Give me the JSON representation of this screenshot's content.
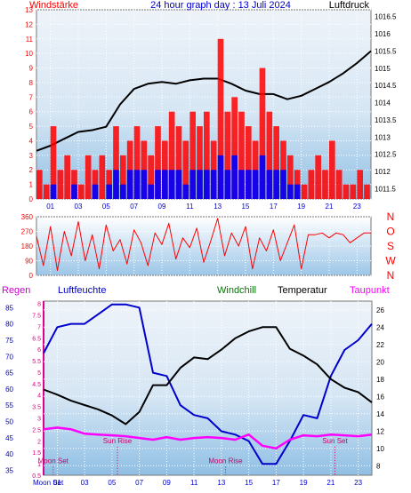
{
  "chart_data": [
    {
      "type": "line",
      "title": "24 hour graph day : 13 Juli 2024",
      "left_axis_label": "Windstärke",
      "right_axis_label": "Luftdruck",
      "left_ticks": [
        "0",
        "1",
        "2",
        "3",
        "4",
        "5",
        "6",
        "7",
        "8",
        "9",
        "10",
        "11",
        "12",
        "13"
      ],
      "right_ticks": [
        "1011.5",
        "1012",
        "1012.5",
        "1013",
        "1013.5",
        "1014",
        "1014.5",
        "1015",
        "1015.5",
        "1016",
        "1016.5"
      ],
      "x_ticks": [
        "01",
        "03",
        "05",
        "07",
        "09",
        "11",
        "13",
        "15",
        "17",
        "19",
        "21",
        "23"
      ],
      "xlim": [
        0,
        24
      ],
      "left_ylim": [
        0,
        13
      ],
      "right_ylim": [
        1011.2,
        1016.7
      ],
      "colors": {
        "pressure": "#000000",
        "gust": "#ff0000",
        "wind": "#0000ff",
        "bg_top": "#eef3f9",
        "bg_bottom": "#8fbfe4",
        "grid": "#ffffff"
      },
      "series": [
        {
          "key": "pressure",
          "axis": "right",
          "x": [
            0,
            1,
            2,
            3,
            4,
            5,
            6,
            7,
            8,
            9,
            10,
            11,
            12,
            13,
            14,
            15,
            16,
            17,
            18,
            19,
            20,
            21,
            22,
            23,
            24
          ],
          "values": [
            1012.6,
            1012.75,
            1012.95,
            1013.15,
            1013.2,
            1013.3,
            1013.95,
            1014.4,
            1014.55,
            1014.6,
            1014.55,
            1014.65,
            1014.7,
            1014.7,
            1014.55,
            1014.35,
            1014.25,
            1014.25,
            1014.1,
            1014.2,
            1014.4,
            1014.6,
            1014.85,
            1015.15,
            1015.5
          ]
        },
        {
          "key": "gust",
          "axis": "left",
          "x": [
            0,
            0.5,
            1,
            1.5,
            2,
            2.5,
            3,
            3.5,
            4,
            4.5,
            5,
            5.5,
            6,
            6.5,
            7,
            7.5,
            8,
            8.5,
            9,
            9.5,
            10,
            10.5,
            11,
            11.5,
            12,
            12.5,
            13,
            13.5,
            14,
            14.5,
            15,
            15.5,
            16,
            16.5,
            17,
            17.5,
            18,
            18.5,
            19,
            19.5,
            20,
            20.5,
            21,
            21.5,
            22,
            22.5,
            23,
            23.5
          ],
          "values": [
            2,
            1,
            5,
            2,
            3,
            2,
            1,
            3,
            2,
            3,
            2,
            5,
            3,
            4,
            5,
            4,
            3,
            5,
            4,
            6,
            5,
            4,
            6,
            5,
            6,
            4,
            11,
            6,
            7,
            6,
            5,
            4,
            9,
            6,
            5,
            4,
            3,
            2,
            1,
            2,
            3,
            2,
            4,
            2,
            1,
            1,
            2,
            1
          ]
        },
        {
          "key": "wind",
          "axis": "left",
          "x": [
            0,
            0.5,
            1,
            1.5,
            2,
            2.5,
            3,
            3.5,
            4,
            4.5,
            5,
            5.5,
            6,
            6.5,
            7,
            7.5,
            8,
            8.5,
            9,
            9.5,
            10,
            10.5,
            11,
            11.5,
            12,
            12.5,
            13,
            13.5,
            14,
            14.5,
            15,
            15.5,
            16,
            16.5,
            17,
            17.5,
            18,
            18.5,
            19,
            19.5,
            20,
            20.5,
            21,
            21.5,
            22,
            22.5,
            23,
            23.5
          ],
          "values": [
            0,
            0,
            1,
            0,
            0,
            1,
            0,
            0,
            1,
            0,
            1,
            2,
            1,
            2,
            2,
            2,
            1,
            2,
            2,
            2,
            2,
            1,
            2,
            2,
            2,
            2,
            3,
            2,
            3,
            2,
            2,
            2,
            3,
            2,
            2,
            2,
            1,
            1,
            0,
            0,
            0,
            0,
            0,
            0,
            0,
            0,
            0,
            0
          ]
        }
      ]
    },
    {
      "type": "line",
      "left_ticks": [
        "0",
        "90",
        "180",
        "270",
        "360"
      ],
      "right_ticks": [
        "N",
        "W",
        "S",
        "O",
        "N"
      ],
      "ylim": [
        0,
        360
      ],
      "xlim": [
        0,
        24
      ],
      "colors": {
        "direction": "#ff0000"
      },
      "series": [
        {
          "key": "direction",
          "x": [
            0,
            0.5,
            1,
            1.5,
            2,
            2.5,
            3,
            3.5,
            4,
            4.5,
            5,
            5.5,
            6,
            6.5,
            7,
            7.5,
            8,
            8.5,
            9,
            9.5,
            10,
            10.5,
            11,
            11.5,
            12,
            12.5,
            13,
            13.5,
            14,
            14.5,
            15,
            15.5,
            16,
            16.5,
            17,
            17.5,
            18,
            18.5,
            19,
            19.5,
            20,
            20.5,
            21,
            21.5,
            22,
            22.5,
            23,
            23.5,
            24
          ],
          "values": [
            240,
            60,
            300,
            30,
            270,
            120,
            330,
            90,
            250,
            40,
            310,
            150,
            220,
            70,
            280,
            200,
            60,
            260,
            190,
            320,
            100,
            230,
            170,
            290,
            80,
            210,
            350,
            120,
            260,
            180,
            300,
            40,
            230,
            150,
            280,
            90,
            200,
            310,
            40,
            250,
            250,
            260,
            230,
            260,
            250,
            200,
            230,
            260,
            260
          ]
        }
      ]
    },
    {
      "type": "line",
      "legend": [
        "Regen",
        "Luftfeuchte",
        "Windchill",
        "Temperatur",
        "Taupunkt"
      ],
      "colors": {
        "Regen": "#cc00cc",
        "Luftfeuchte": "#0000cc",
        "Windchill": "#007700",
        "Temperatur": "#000000",
        "Taupunkt": "#ff00ff",
        "rain_axis": "#dd0088",
        "markers": "#cc0066"
      },
      "rain_ticks": [
        "0.5",
        "1",
        "1.5",
        "2",
        "2.5",
        "3",
        "3.5",
        "4",
        "4.5",
        "5",
        "5.5",
        "6",
        "6.5",
        "7",
        "7.5",
        "8"
      ],
      "humidity_ticks": [
        "35",
        "40",
        "45",
        "50",
        "55",
        "60",
        "65",
        "70",
        "75",
        "80",
        "85"
      ],
      "temp_ticks": [
        "8",
        "10",
        "12",
        "14",
        "16",
        "18",
        "20",
        "22",
        "24",
        "26"
      ],
      "x_ticks": [
        "01",
        "03",
        "05",
        "07",
        "09",
        "11",
        "13",
        "15",
        "17",
        "19",
        "21",
        "23"
      ],
      "xlim": [
        0,
        24
      ],
      "humidity_ylim": [
        33.5,
        87
      ],
      "temp_ylim": [
        6.9,
        27
      ],
      "annotations": [
        {
          "label": "Sun Rise",
          "x": 5.4,
          "yval": 10.6
        },
        {
          "label": "Sun Set",
          "x": 21.3,
          "yval": 10.6
        },
        {
          "label": "Moon Set",
          "x": 0.7,
          "yval": 8.3
        },
        {
          "label": "Moon Rise",
          "x": 13.3,
          "yval": 8.3
        }
      ],
      "moon_label": "Moon Set",
      "series": [
        {
          "name": "Luftfeuchte",
          "axis": "humidity",
          "x": [
            0,
            1,
            2,
            3,
            4,
            5,
            6,
            7,
            8,
            9,
            10,
            11,
            12,
            13,
            14,
            15,
            16,
            17,
            18,
            19,
            20,
            21,
            22,
            23,
            24
          ],
          "values": [
            71,
            79,
            80,
            80,
            83,
            86,
            86,
            85,
            65,
            64,
            55,
            52,
            51,
            47,
            46,
            44,
            37,
            37,
            44,
            52,
            51,
            64,
            72,
            75,
            80
          ]
        },
        {
          "name": "Temperatur",
          "axis": "temp",
          "x": [
            0,
            1,
            2,
            3,
            4,
            5,
            6,
            7,
            8,
            9,
            10,
            11,
            12,
            13,
            14,
            15,
            16,
            17,
            18,
            19,
            20,
            21,
            22,
            23,
            24
          ],
          "values": [
            16.8,
            16.2,
            15.5,
            15.0,
            14.5,
            13.8,
            12.8,
            14.2,
            17.3,
            17.3,
            19.3,
            20.5,
            20.3,
            21.4,
            22.7,
            23.5,
            24.0,
            24.0,
            21.5,
            20.7,
            19.7,
            18.0,
            17.0,
            16.5,
            15.3
          ]
        },
        {
          "name": "Taupunkt",
          "axis": "temp",
          "x": [
            0,
            1,
            2,
            3,
            4,
            5,
            6,
            7,
            8,
            9,
            10,
            11,
            12,
            13,
            14,
            15,
            16,
            17,
            18,
            19,
            20,
            21,
            22,
            23,
            24
          ],
          "values": [
            12.2,
            12.4,
            12.2,
            11.7,
            11.6,
            11.5,
            11.4,
            11.2,
            11.0,
            11.3,
            11.0,
            11.2,
            11.3,
            11.2,
            11.0,
            11.6,
            10.3,
            10.0,
            11.0,
            11.5,
            11.4,
            11.6,
            11.5,
            11.4,
            11.6
          ]
        }
      ]
    }
  ]
}
